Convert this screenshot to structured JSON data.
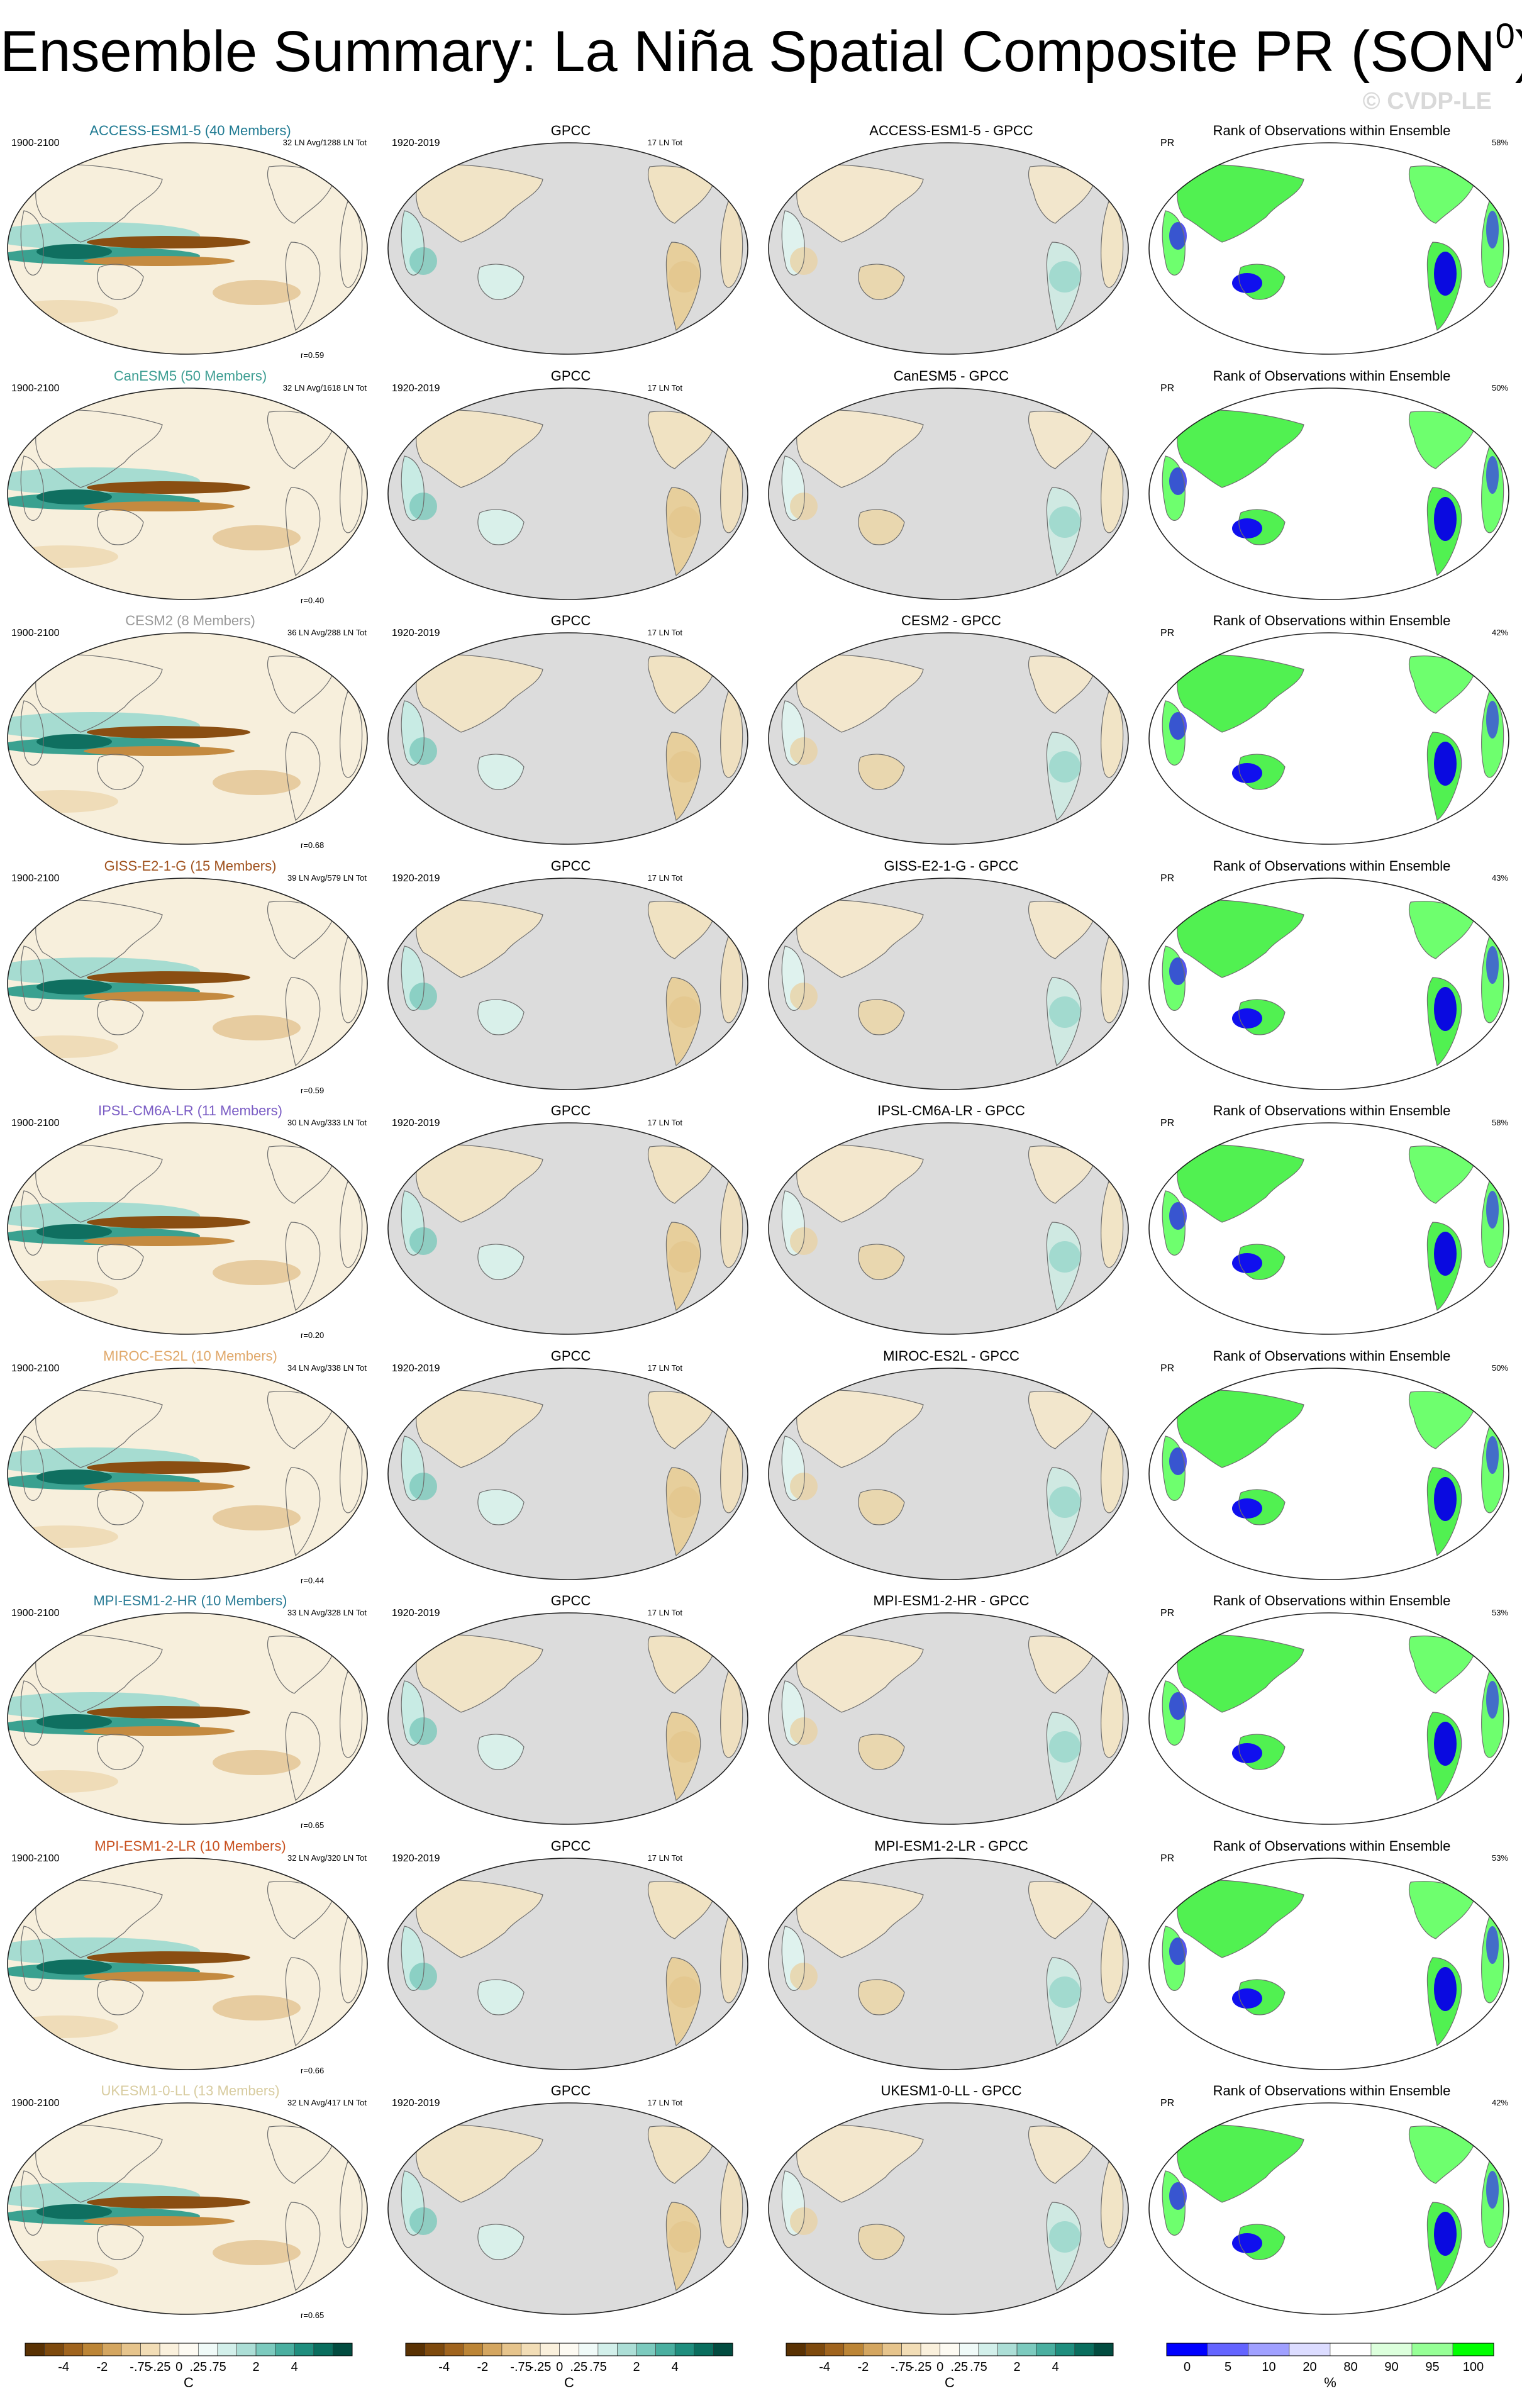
{
  "title_main": "Ensemble Summary: La Niña Spatial Composite PR (SON",
  "title_sup": "0",
  "title_close": ")",
  "watermark": "© CVDP-LE",
  "rows": [
    {
      "model": "ACCESS-ESM1-5 (40 Members)",
      "model_color": "#1f7a92",
      "stats": "32 LN Avg/1288 LN Tot",
      "r": "r=0.59",
      "diff": "ACCESS-ESM1-5 - GPCC",
      "pct": "58%"
    },
    {
      "model": "CanESM5 (50 Members)",
      "model_color": "#3e9e93",
      "stats": "32 LN Avg/1618 LN Tot",
      "r": "r=0.40",
      "diff": "CanESM5 - GPCC",
      "pct": "50%"
    },
    {
      "model": "CESM2 (8 Members)",
      "model_color": "#999999",
      "stats": "36 LN Avg/288 LN Tot",
      "r": "r=0.68",
      "diff": "CESM2 - GPCC",
      "pct": "42%"
    },
    {
      "model": "GISS-E2-1-G (15 Members)",
      "model_color": "#a0521e",
      "stats": "39 LN Avg/579 LN Tot",
      "r": "r=0.59",
      "diff": "GISS-E2-1-G - GPCC",
      "pct": "43%"
    },
    {
      "model": "IPSL-CM6A-LR (11 Members)",
      "model_color": "#7a5cc4",
      "stats": "30 LN Avg/333 LN Tot",
      "r": "r=0.20",
      "diff": "IPSL-CM6A-LR - GPCC",
      "pct": "58%"
    },
    {
      "model": "MIROC-ES2L (10 Members)",
      "model_color": "#e0a86a",
      "stats": "34 LN Avg/338 LN Tot",
      "r": "r=0.44",
      "diff": "MIROC-ES2L - GPCC",
      "pct": "50%"
    },
    {
      "model": "MPI-ESM1-2-HR (10 Members)",
      "model_color": "#2a7c96",
      "stats": "33 LN Avg/328 LN Tot",
      "r": "r=0.65",
      "diff": "MPI-ESM1-2-HR - GPCC",
      "pct": "53%"
    },
    {
      "model": "MPI-ESM1-2-LR (10 Members)",
      "model_color": "#c8501e",
      "stats": "32 LN Avg/320 LN Tot",
      "r": "r=0.66",
      "diff": "MPI-ESM1-2-LR - GPCC",
      "pct": "53%"
    },
    {
      "model": "UKESM1-0-LL (13 Members)",
      "model_color": "#d8cca0",
      "stats": "32 LN Avg/417 LN Tot",
      "r": "r=0.65",
      "diff": "UKESM1-0-LL - GPCC",
      "pct": "42%"
    }
  ],
  "common": {
    "model_period": "1900-2100",
    "obs_title": "GPCC",
    "obs_period": "1920-2019",
    "obs_stats": "17 LN Tot",
    "rank_title": "Rank of Observations within Ensemble",
    "rank_var": "PR"
  },
  "chart_data": {
    "type": "heatmap",
    "description_columns": [
      "model ensemble composite",
      "GPCC observed composite",
      "model minus GPCC",
      "rank of observations within ensemble"
    ],
    "diverging_colorbar": {
      "labels": [
        "-4",
        "-2",
        "-.75",
        "-.25",
        "0",
        ".25",
        ".75",
        "2",
        "4"
      ],
      "units": "C",
      "colors": [
        "#5a3204",
        "#7e4a0e",
        "#a0641e",
        "#bc8536",
        "#d4a660",
        "#e6c48c",
        "#f2ddb6",
        "#faf0dc",
        "#fdfaf2",
        "#f0faf8",
        "#d2efea",
        "#acded6",
        "#7ccabe",
        "#4aafa0",
        "#1f8e7e",
        "#0a6e5e",
        "#024c40"
      ]
    },
    "rank_colorbar": {
      "labels": [
        "0",
        "5",
        "10",
        "20",
        "80",
        "90",
        "95",
        "100"
      ],
      "units": "%",
      "colors": [
        "#0000ff",
        "#6464ff",
        "#a0a0ff",
        "#dcdcff",
        "#ffffff",
        "#dcffdc",
        "#96ff96",
        "#00ff00"
      ]
    }
  }
}
